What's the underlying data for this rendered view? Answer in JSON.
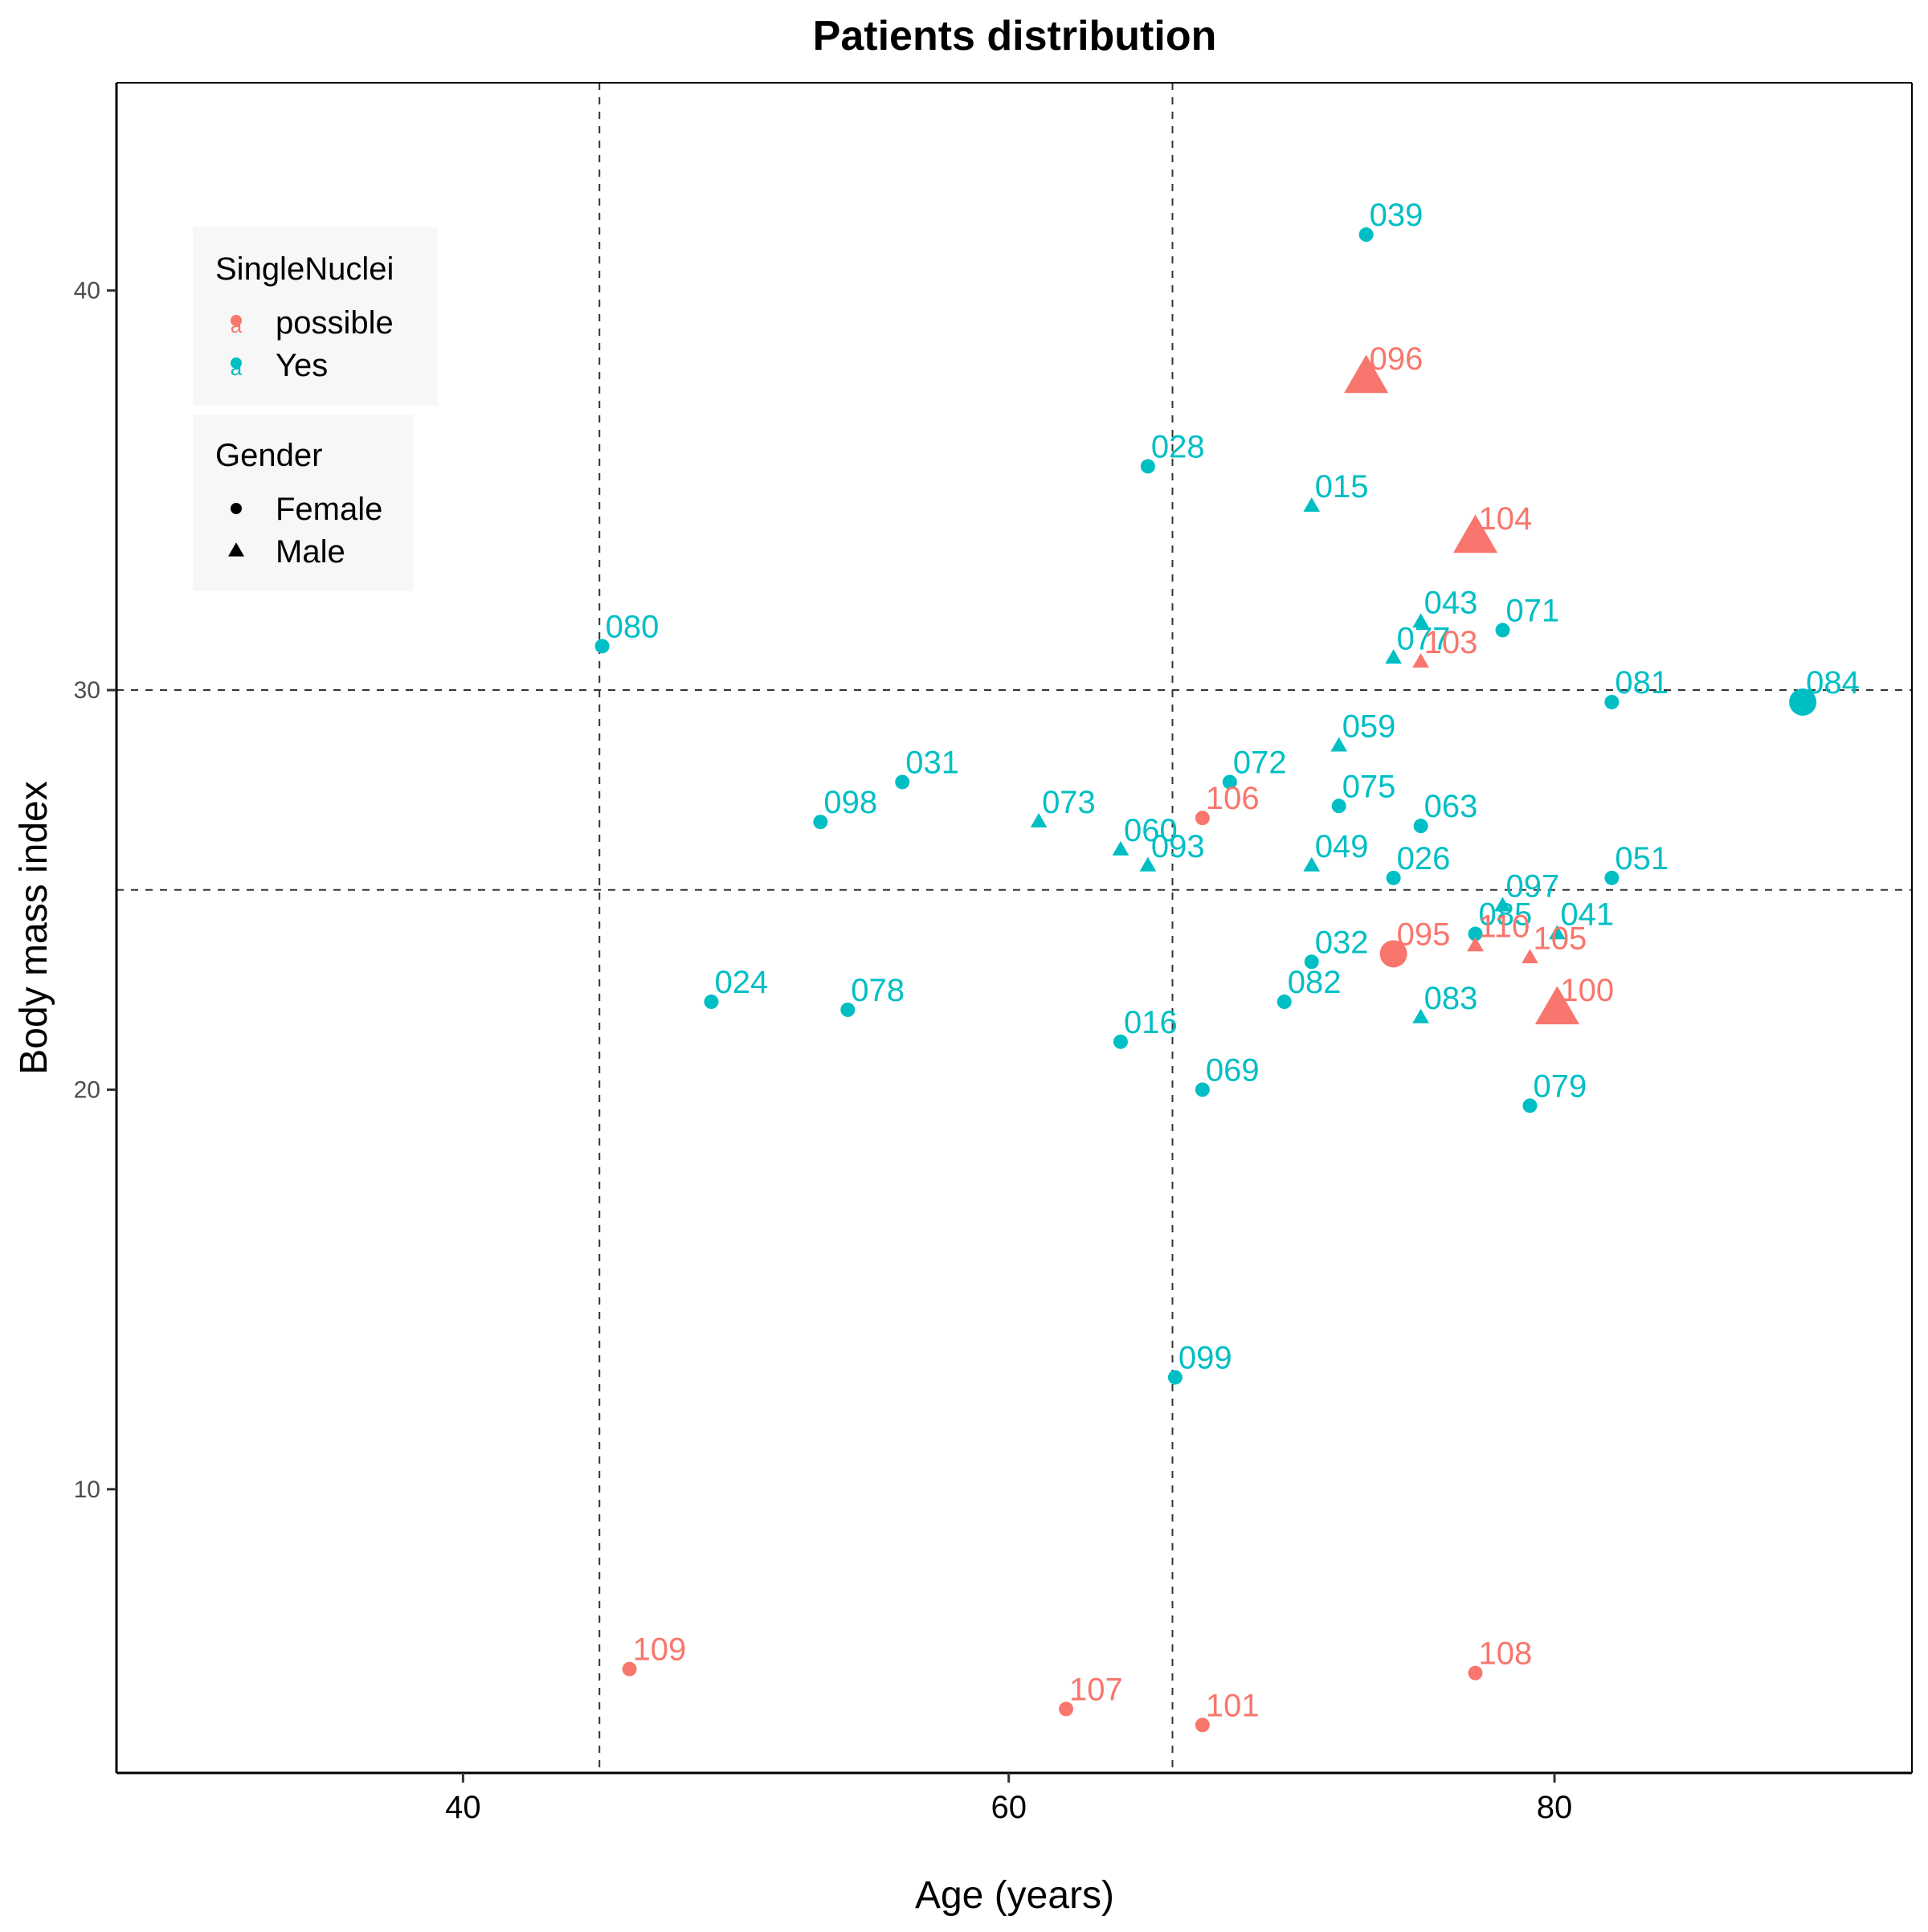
{
  "chart_data": {
    "type": "scatter",
    "title": "Patients distribution",
    "xlabel": "Age (years)",
    "ylabel": "Body mass index",
    "xlim": [
      27.3,
      93.1
    ],
    "ylim": [
      2.9,
      45.2
    ],
    "x_ticks": [
      40,
      60,
      80
    ],
    "y_ticks": [
      10,
      20,
      30,
      40
    ],
    "grid": false,
    "reference_lines": {
      "vertical": [
        45,
        66
      ],
      "horizontal": [
        25,
        30
      ]
    },
    "colors": {
      "possible": "#F8766D",
      "Yes": "#00BFC4"
    },
    "legend": {
      "placement": "top-left",
      "color": {
        "title": "SingleNuclei",
        "entries": [
          "possible",
          "Yes"
        ]
      },
      "shape": {
        "title": "Gender",
        "entries": [
          "Female",
          "Male"
        ]
      }
    },
    "points": [
      {
        "label": "039",
        "x": 73.1,
        "y": 41.4,
        "group": "Yes",
        "gender": "Female",
        "size": 1
      },
      {
        "label": "096",
        "x": 73.1,
        "y": 37.8,
        "group": "possible",
        "gender": "Male",
        "size": 3
      },
      {
        "label": "028",
        "x": 65.1,
        "y": 35.6,
        "group": "Yes",
        "gender": "Female",
        "size": 1
      },
      {
        "label": "015",
        "x": 71.1,
        "y": 34.6,
        "group": "Yes",
        "gender": "Male",
        "size": 1
      },
      {
        "label": "104",
        "x": 77.1,
        "y": 33.8,
        "group": "possible",
        "gender": "Male",
        "size": 3
      },
      {
        "label": "043",
        "x": 75.1,
        "y": 31.7,
        "group": "Yes",
        "gender": "Male",
        "size": 1
      },
      {
        "label": "071",
        "x": 78.1,
        "y": 31.5,
        "group": "Yes",
        "gender": "Female",
        "size": 1
      },
      {
        "label": "080",
        "x": 45.1,
        "y": 31.1,
        "group": "Yes",
        "gender": "Female",
        "size": 1
      },
      {
        "label": "077",
        "x": 74.1,
        "y": 30.8,
        "group": "Yes",
        "gender": "Male",
        "size": 1
      },
      {
        "label": "103",
        "x": 75.1,
        "y": 30.7,
        "group": "possible",
        "gender": "Male",
        "size": 1
      },
      {
        "label": "081",
        "x": 82.1,
        "y": 29.7,
        "group": "Yes",
        "gender": "Female",
        "size": 1
      },
      {
        "label": "084",
        "x": 89.1,
        "y": 29.7,
        "group": "Yes",
        "gender": "Female",
        "size": 2
      },
      {
        "label": "059",
        "x": 72.1,
        "y": 28.6,
        "group": "Yes",
        "gender": "Male",
        "size": 1
      },
      {
        "label": "031",
        "x": 56.1,
        "y": 27.7,
        "group": "Yes",
        "gender": "Female",
        "size": 1
      },
      {
        "label": "072",
        "x": 68.1,
        "y": 27.7,
        "group": "Yes",
        "gender": "Female",
        "size": 1
      },
      {
        "label": "075",
        "x": 72.1,
        "y": 27.1,
        "group": "Yes",
        "gender": "Female",
        "size": 1
      },
      {
        "label": "106",
        "x": 67.1,
        "y": 26.8,
        "group": "possible",
        "gender": "Female",
        "size": 1
      },
      {
        "label": "098",
        "x": 53.1,
        "y": 26.7,
        "group": "Yes",
        "gender": "Female",
        "size": 1
      },
      {
        "label": "073",
        "x": 61.1,
        "y": 26.7,
        "group": "Yes",
        "gender": "Male",
        "size": 1
      },
      {
        "label": "063",
        "x": 75.1,
        "y": 26.6,
        "group": "Yes",
        "gender": "Female",
        "size": 1
      },
      {
        "label": "060",
        "x": 64.1,
        "y": 26.0,
        "group": "Yes",
        "gender": "Male",
        "size": 1
      },
      {
        "label": "093",
        "x": 65.1,
        "y": 25.6,
        "group": "Yes",
        "gender": "Male",
        "size": 1
      },
      {
        "label": "049",
        "x": 71.1,
        "y": 25.6,
        "group": "Yes",
        "gender": "Male",
        "size": 1
      },
      {
        "label": "026",
        "x": 74.1,
        "y": 25.3,
        "group": "Yes",
        "gender": "Female",
        "size": 1
      },
      {
        "label": "051",
        "x": 82.1,
        "y": 25.3,
        "group": "Yes",
        "gender": "Female",
        "size": 1
      },
      {
        "label": "097",
        "x": 78.1,
        "y": 24.6,
        "group": "Yes",
        "gender": "Male",
        "size": 1
      },
      {
        "label": "041",
        "x": 80.1,
        "y": 23.9,
        "group": "Yes",
        "gender": "Male",
        "size": 1
      },
      {
        "label": "085",
        "x": 77.1,
        "y": 23.9,
        "group": "Yes",
        "gender": "Female",
        "size": 1
      },
      {
        "label": "110",
        "x": 77.1,
        "y": 23.6,
        "group": "possible",
        "gender": "Male",
        "size": 1
      },
      {
        "label": "105",
        "x": 79.1,
        "y": 23.3,
        "group": "possible",
        "gender": "Male",
        "size": 1
      },
      {
        "label": "095",
        "x": 74.1,
        "y": 23.4,
        "group": "possible",
        "gender": "Female",
        "size": 2
      },
      {
        "label": "032",
        "x": 71.1,
        "y": 23.2,
        "group": "Yes",
        "gender": "Female",
        "size": 1
      },
      {
        "label": "024",
        "x": 49.1,
        "y": 22.2,
        "group": "Yes",
        "gender": "Female",
        "size": 1
      },
      {
        "label": "082",
        "x": 70.1,
        "y": 22.2,
        "group": "Yes",
        "gender": "Female",
        "size": 1
      },
      {
        "label": "100",
        "x": 80.1,
        "y": 22.0,
        "group": "possible",
        "gender": "Male",
        "size": 3
      },
      {
        "label": "078",
        "x": 54.1,
        "y": 22.0,
        "group": "Yes",
        "gender": "Female",
        "size": 1
      },
      {
        "label": "083",
        "x": 75.1,
        "y": 21.8,
        "group": "Yes",
        "gender": "Male",
        "size": 1
      },
      {
        "label": "016",
        "x": 64.1,
        "y": 21.2,
        "group": "Yes",
        "gender": "Female",
        "size": 1
      },
      {
        "label": "069",
        "x": 67.1,
        "y": 20.0,
        "group": "Yes",
        "gender": "Female",
        "size": 1
      },
      {
        "label": "079",
        "x": 79.1,
        "y": 19.6,
        "group": "Yes",
        "gender": "Female",
        "size": 1
      },
      {
        "label": "099",
        "x": 66.1,
        "y": 12.8,
        "group": "Yes",
        "gender": "Female",
        "size": 1
      },
      {
        "label": "109",
        "x": 46.1,
        "y": 5.5,
        "group": "possible",
        "gender": "Female",
        "size": 1
      },
      {
        "label": "108",
        "x": 77.1,
        "y": 5.4,
        "group": "possible",
        "gender": "Female",
        "size": 1
      },
      {
        "label": "107",
        "x": 62.1,
        "y": 4.5,
        "group": "possible",
        "gender": "Female",
        "size": 1
      },
      {
        "label": "101",
        "x": 67.1,
        "y": 4.1,
        "group": "possible",
        "gender": "Female",
        "size": 1
      }
    ]
  }
}
